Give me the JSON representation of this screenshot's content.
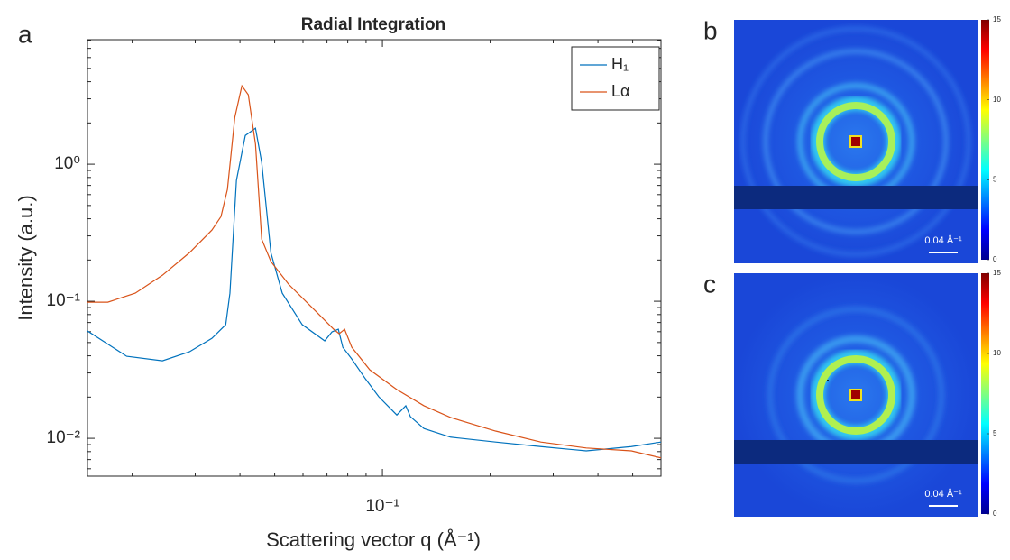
{
  "chart_data": {
    "type": "line",
    "title": "Radial Integration",
    "x_label": "Scattering vector q (Å⁻¹)",
    "y_label": "Intensity (a.u.)",
    "xscale": "log",
    "yscale": "log",
    "xlim": [
      0.015,
      0.6
    ],
    "ylim": [
      0.0053,
      8.1
    ],
    "xticks": [
      {
        "value": 0.1,
        "label": "10⁻¹"
      }
    ],
    "yticks": [
      {
        "value": 0.01,
        "label": "10⁻²"
      },
      {
        "value": 0.1,
        "label": "10⁻¹"
      },
      {
        "value": 1,
        "label": "10⁰"
      }
    ],
    "legend": "upper right",
    "series": [
      {
        "name": "H₁",
        "color": "#0072bd",
        "x": [
          0.015,
          0.0193,
          0.0243,
          0.0289,
          0.0334,
          0.0365,
          0.0375,
          0.0391,
          0.0414,
          0.0442,
          0.046,
          0.0488,
          0.0525,
          0.0597,
          0.069,
          0.0723,
          0.0753,
          0.0775,
          0.0821,
          0.0896,
          0.0977,
          0.1097,
          0.1162,
          0.1197,
          0.1306,
          0.155,
          0.207,
          0.277,
          0.371,
          0.496,
          0.6
        ],
        "values": [
          0.0607,
          0.0397,
          0.0368,
          0.0428,
          0.0537,
          0.0675,
          0.1146,
          0.761,
          1.62,
          1.83,
          1.03,
          0.226,
          0.1146,
          0.0675,
          0.0514,
          0.0598,
          0.0625,
          0.0462,
          0.0379,
          0.0272,
          0.0201,
          0.0148,
          0.0173,
          0.0144,
          0.0118,
          0.0102,
          0.0094,
          0.0087,
          0.0081,
          0.0087,
          0.0094
        ]
      },
      {
        "name": "Lα",
        "color": "#d95319",
        "x": [
          0.015,
          0.0171,
          0.0204,
          0.0243,
          0.0289,
          0.0334,
          0.0354,
          0.0369,
          0.0387,
          0.0405,
          0.0422,
          0.0442,
          0.046,
          0.0488,
          0.0547,
          0.0651,
          0.0731,
          0.0757,
          0.0784,
          0.0821,
          0.0922,
          0.1097,
          0.1306,
          0.155,
          0.207,
          0.277,
          0.371,
          0.496,
          0.6
        ],
        "values": [
          0.0985,
          0.0985,
          0.1146,
          0.155,
          0.226,
          0.331,
          0.415,
          0.655,
          2.2,
          3.73,
          3.21,
          1.4,
          0.284,
          0.195,
          0.133,
          0.0847,
          0.0625,
          0.058,
          0.0625,
          0.0462,
          0.0316,
          0.0227,
          0.0173,
          0.0142,
          0.0113,
          0.0094,
          0.0085,
          0.0081,
          0.0072
        ]
      }
    ]
  },
  "panel_a": "a",
  "images": [
    {
      "panel": "b",
      "scale_label": "0.04 Å⁻¹",
      "colorbar": {
        "lim": [
          0,
          15
        ],
        "ticks": [
          0,
          5,
          10,
          15
        ]
      }
    },
    {
      "panel": "c",
      "scale_label": "0.04 Å⁻¹",
      "colorbar": {
        "lim": [
          0,
          15
        ],
        "ticks": [
          0,
          5,
          10,
          15
        ]
      }
    }
  ]
}
